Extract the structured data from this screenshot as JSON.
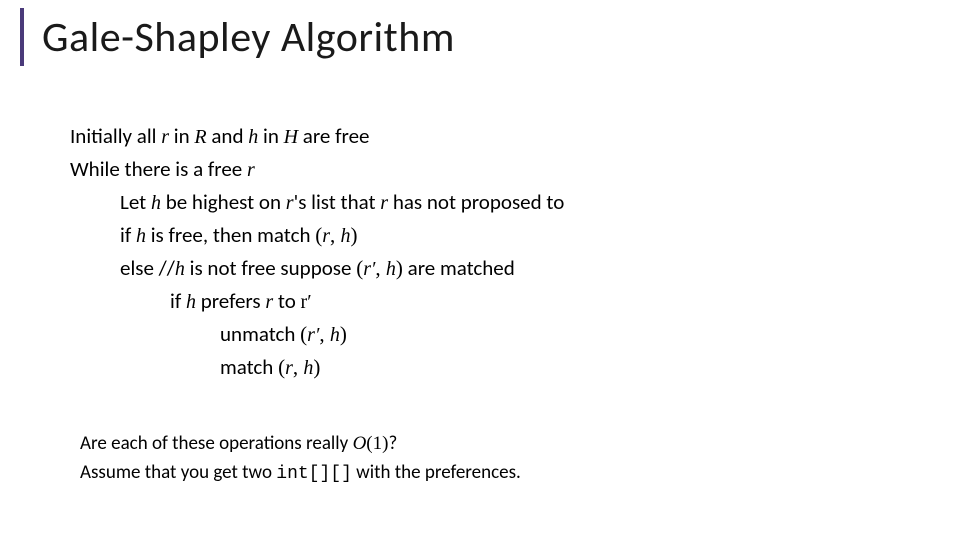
{
  "title": "Gale-Shapley Algorithm",
  "pseudo": {
    "l1a": "Initially all ",
    "l1b": " in ",
    "l1c": " and ",
    "l1d": " in ",
    "l1e": " are free",
    "l2a": "While there is a free ",
    "l3a": "Let ",
    "l3b": " be highest on ",
    "l3c": "'s list that ",
    "l3d": " has not proposed to",
    "l4a": "if ",
    "l4b": " is free, then match ",
    "l5a": "else //",
    "l5b": " is not free suppose ",
    "l5c": " are matched",
    "l6a": "if ",
    "l6b": " prefers ",
    "l6c": " to ",
    "l7a": "unmatch ",
    "l8a": "match "
  },
  "sym": {
    "r": "r",
    "R": "R",
    "h": "h",
    "H": "H",
    "rprime": "r′",
    "lp": "(",
    "rp": ")",
    "comma": ", "
  },
  "footer": {
    "q1a": "Are each of these operations really ",
    "q1b": "?",
    "bigO": "O",
    "Oarg": "(1)",
    "q2a": "Assume that you get two ",
    "code": "int[][]",
    "q2b": "  with the preferences."
  },
  "colors": {
    "accent": "#4a3a7a",
    "background": "#ffffff",
    "text": "#000000",
    "title": "#1a1a1a"
  }
}
